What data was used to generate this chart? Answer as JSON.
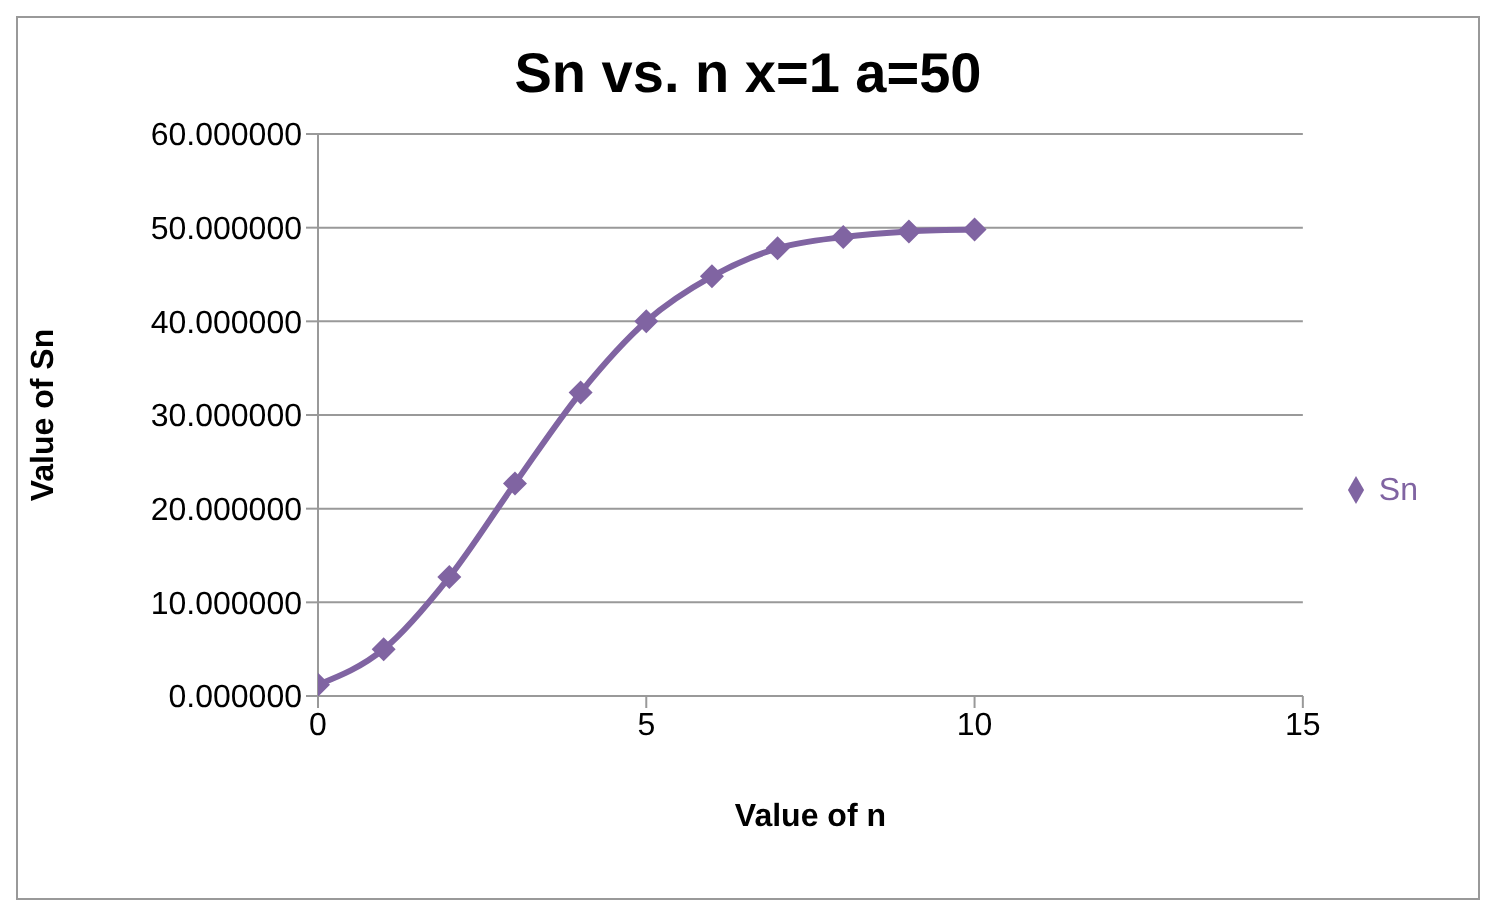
{
  "chart_data": {
    "type": "line",
    "title": "Sn vs. n x=1 a=50",
    "xlabel": "Value of n",
    "ylabel": "Value of Sn",
    "x": [
      0,
      1,
      2,
      3,
      4,
      5,
      6,
      7,
      8,
      9,
      10
    ],
    "series": [
      {
        "name": "Sn",
        "color": "#8064a2",
        "values": [
          1.2,
          5.0,
          12.7,
          22.7,
          32.4,
          40.0,
          44.8,
          47.8,
          49.0,
          49.6,
          49.8
        ]
      }
    ],
    "xlim": [
      0,
      15
    ],
    "xticks": [
      0,
      5,
      10,
      15
    ],
    "ylim": [
      0,
      60
    ],
    "yticks": [
      {
        "value": 0,
        "label": "0.000000"
      },
      {
        "value": 10,
        "label": "10.000000"
      },
      {
        "value": 20,
        "label": "20.000000"
      },
      {
        "value": 30,
        "label": "30.000000"
      },
      {
        "value": 40,
        "label": "40.000000"
      },
      {
        "value": 50,
        "label": "50.000000"
      },
      {
        "value": 60,
        "label": "60.000000"
      }
    ],
    "grid": "y",
    "legend": "right",
    "marker": "diamond",
    "line_style": "solid"
  }
}
